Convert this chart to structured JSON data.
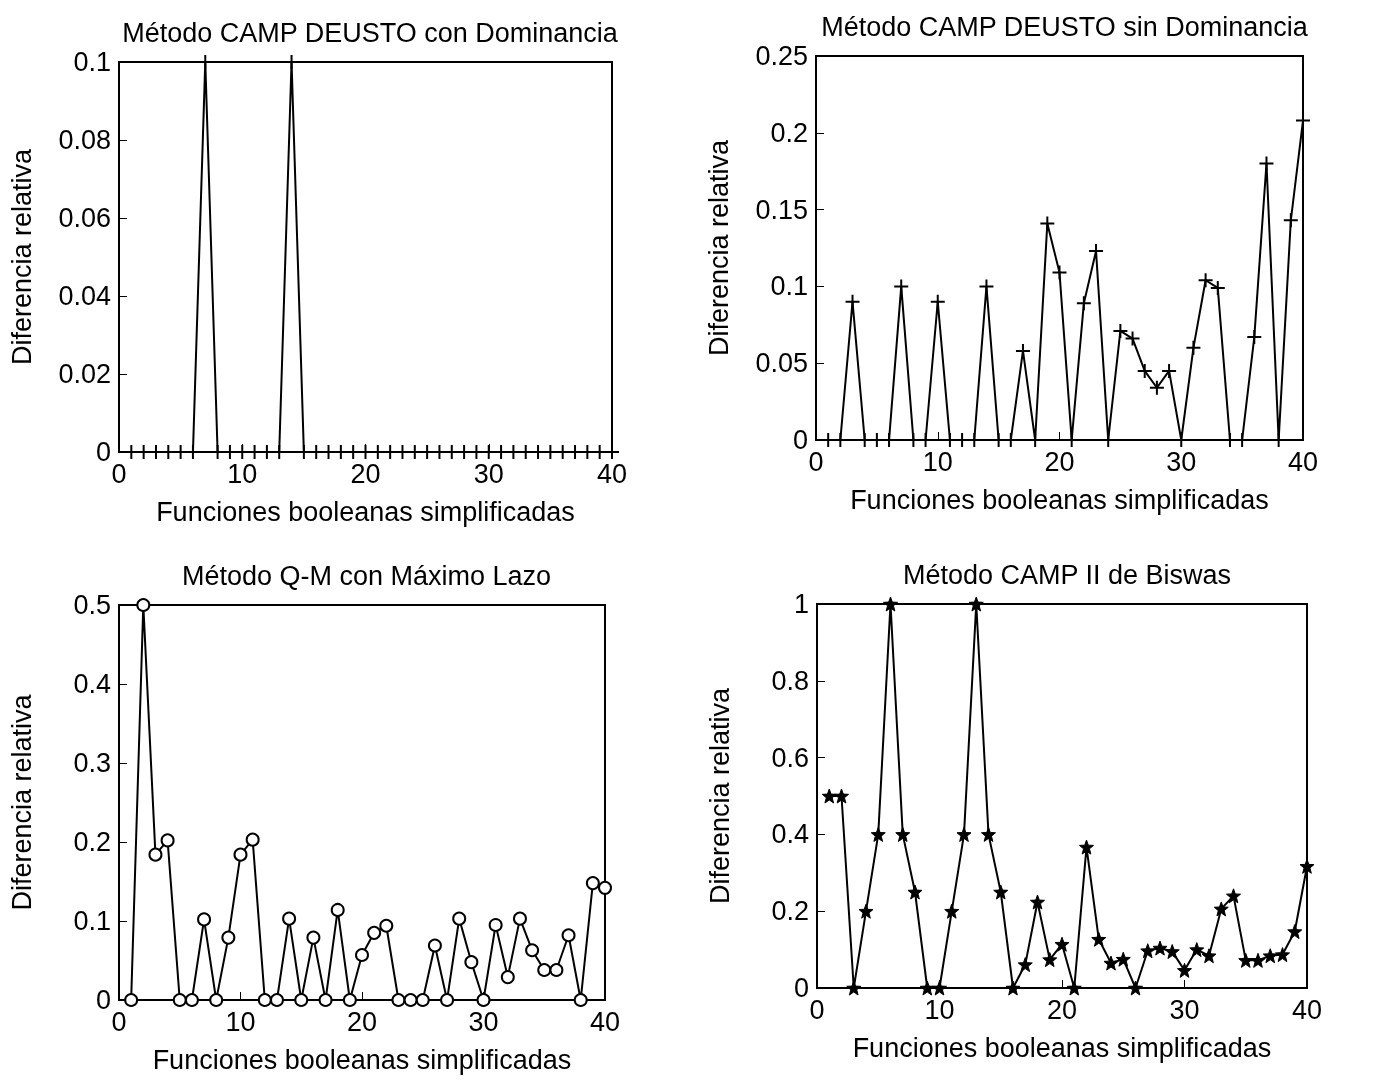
{
  "chart_data": [
    {
      "type": "line",
      "title": "Método CAMP DEUSTO con Dominancia",
      "xlabel": "Funciones booleanas simplificadas",
      "ylabel": "Diferencia relativa",
      "marker": "cross",
      "grid": false,
      "xlim": [
        0,
        40
      ],
      "xticks": [
        0,
        10,
        20,
        30,
        40
      ],
      "ylim": [
        0,
        0.1
      ],
      "yticks": [
        0,
        0.02,
        0.04,
        0.06,
        0.08,
        0.1
      ],
      "x": [
        1,
        2,
        3,
        4,
        5,
        6,
        7,
        8,
        9,
        10,
        11,
        12,
        13,
        14,
        15,
        16,
        17,
        18,
        19,
        20,
        21,
        22,
        23,
        24,
        25,
        26,
        27,
        28,
        29,
        30,
        31,
        32,
        33,
        34,
        35,
        36,
        37,
        38,
        39,
        40
      ],
      "series": [
        {
          "color": "#000000",
          "values": [
            0,
            0,
            0,
            0,
            0,
            0,
            0.1,
            0,
            0,
            0,
            0,
            0,
            0,
            0.1,
            0,
            0,
            0,
            0,
            0,
            0,
            0,
            0,
            0,
            0,
            0,
            0,
            0,
            0,
            0,
            0,
            0,
            0,
            0,
            0,
            0,
            0,
            0,
            0,
            0,
            0
          ]
        }
      ]
    },
    {
      "type": "line",
      "title": "Método CAMP DEUSTO sin Dominancia",
      "xlabel": "Funciones booleanas simplificadas",
      "ylabel": "Diferencia relativa",
      "marker": "cross",
      "grid": false,
      "xlim": [
        0,
        40
      ],
      "xticks": [
        0,
        10,
        20,
        30,
        40
      ],
      "ylim": [
        0,
        0.25
      ],
      "yticks": [
        0,
        0.05,
        0.1,
        0.15,
        0.2,
        0.25
      ],
      "x": [
        1,
        2,
        3,
        4,
        5,
        6,
        7,
        8,
        9,
        10,
        11,
        12,
        13,
        14,
        15,
        16,
        17,
        18,
        19,
        20,
        21,
        22,
        23,
        24,
        25,
        26,
        27,
        28,
        29,
        30,
        31,
        32,
        33,
        34,
        35,
        36,
        37,
        38,
        39,
        40
      ],
      "series": [
        {
          "color": "#000000",
          "values": [
            0,
            0,
            0.09,
            0,
            0,
            0,
            0.1,
            0,
            0,
            0.09,
            0,
            0,
            0,
            0.1,
            0,
            0,
            0.058,
            0,
            0.141,
            0.109,
            0,
            0.089,
            0.123,
            0,
            0.071,
            0.066,
            0.045,
            0.034,
            0.045,
            0,
            0.06,
            0.104,
            0.099,
            0,
            0,
            0.067,
            0.18,
            0,
            0.143,
            0.208
          ]
        }
      ]
    },
    {
      "type": "line",
      "title": "Método Q-M con Máximo Lazo",
      "xlabel": "Funciones booleanas simplificadas",
      "ylabel": "Diferencia relativa",
      "marker": "circle",
      "grid": false,
      "xlim": [
        0,
        40
      ],
      "xticks": [
        0,
        10,
        20,
        30,
        40
      ],
      "ylim": [
        0,
        0.5
      ],
      "yticks": [
        0,
        0.1,
        0.2,
        0.3,
        0.4,
        0.5
      ],
      "x": [
        1,
        2,
        3,
        4,
        5,
        6,
        7,
        8,
        9,
        10,
        11,
        12,
        13,
        14,
        15,
        16,
        17,
        18,
        19,
        20,
        21,
        22,
        23,
        24,
        25,
        26,
        27,
        28,
        29,
        30,
        31,
        32,
        33,
        34,
        35,
        36,
        37,
        38,
        39,
        40
      ],
      "series": [
        {
          "color": "#000000",
          "values": [
            0,
            0.5,
            0.184,
            0.202,
            0,
            0,
            0.102,
            0,
            0.079,
            0.184,
            0.203,
            0,
            0,
            0.103,
            0,
            0.079,
            0,
            0.114,
            0,
            0.057,
            0.085,
            0.094,
            0,
            0,
            0,
            0.069,
            0,
            0.103,
            0.048,
            0,
            0.095,
            0.029,
            0.103,
            0.063,
            0.038,
            0.038,
            0.082,
            0,
            0.148,
            0.142
          ]
        }
      ]
    },
    {
      "type": "line",
      "title": "Método CAMP II de Biswas",
      "xlabel": "Funciones booleanas simplificadas",
      "ylabel": "Diferencia relativa",
      "marker": "star",
      "grid": false,
      "xlim": [
        0,
        40
      ],
      "xticks": [
        0,
        10,
        20,
        30,
        40
      ],
      "ylim": [
        0,
        1
      ],
      "yticks": [
        0,
        0.2,
        0.4,
        0.6,
        0.8,
        1
      ],
      "x": [
        1,
        2,
        3,
        4,
        5,
        6,
        7,
        8,
        9,
        10,
        11,
        12,
        13,
        14,
        15,
        16,
        17,
        18,
        19,
        20,
        21,
        22,
        23,
        24,
        25,
        26,
        27,
        28,
        29,
        30,
        31,
        32,
        33,
        34,
        35,
        36,
        37,
        38,
        39,
        40
      ],
      "series": [
        {
          "color": "#000000",
          "values": [
            0.5,
            0.5,
            0,
            0.2,
            0.4,
            1,
            0.4,
            0.25,
            0,
            0,
            0.2,
            0.4,
            1,
            0.4,
            0.25,
            0,
            0.061,
            0.224,
            0.074,
            0.114,
            0,
            0.367,
            0.127,
            0.065,
            0.075,
            0,
            0.097,
            0.104,
            0.095,
            0.046,
            0.1,
            0.084,
            0.206,
            0.24,
            0.072,
            0.072,
            0.084,
            0.087,
            0.147,
            0.317
          ]
        }
      ]
    }
  ]
}
